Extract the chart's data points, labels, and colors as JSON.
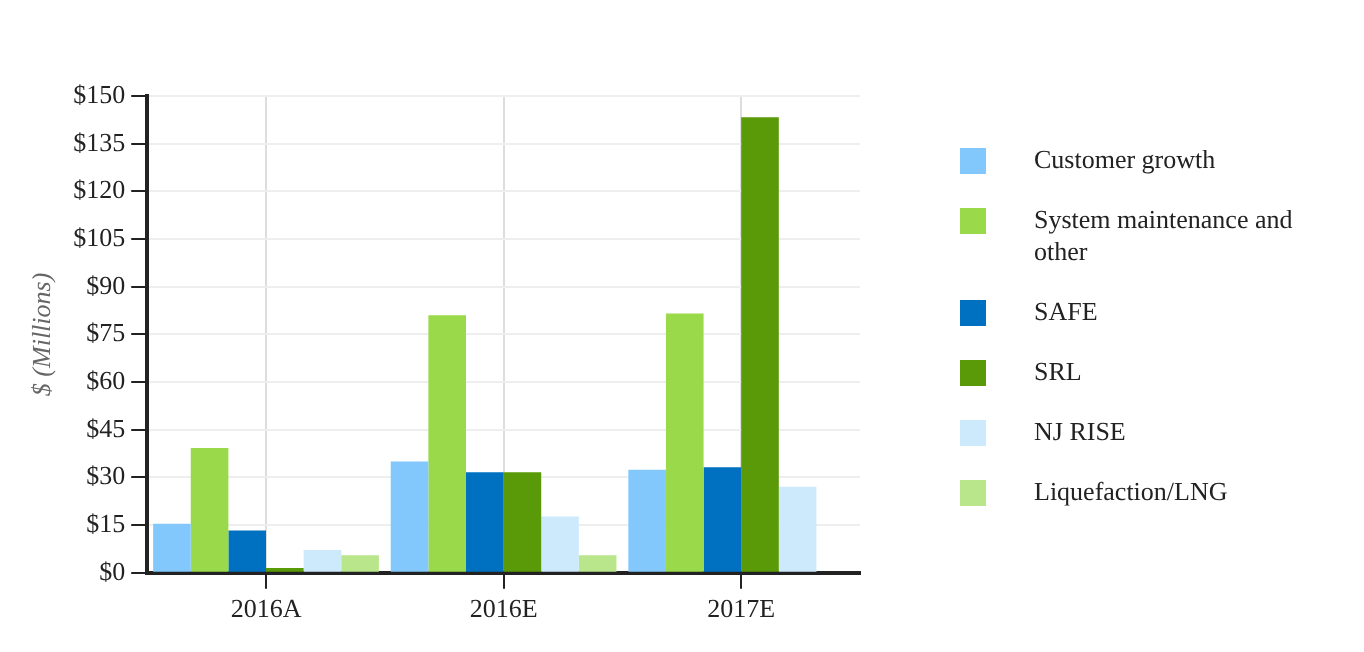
{
  "chart_data": {
    "type": "bar",
    "ylabel": "$ (Millions)",
    "categories": [
      "2016A",
      "2016E",
      "2017E"
    ],
    "series": [
      {
        "name": "Customer growth",
        "color": "#82c8fc",
        "values": [
          15.4,
          35,
          32.4
        ]
      },
      {
        "name": "System maintenance and other",
        "color": "#9ad94a",
        "values": [
          39.3,
          81,
          81.6
        ]
      },
      {
        "name": "SAFE",
        "color": "#0070c0",
        "values": [
          13.3,
          31.6,
          33.2
        ]
      },
      {
        "name": "SRL",
        "color": "#5a9a08",
        "values": [
          1.5,
          31.6,
          143.3
        ]
      },
      {
        "name": "NJ RISE",
        "color": "#cdeafc",
        "values": [
          7.2,
          17.7,
          27.1
        ]
      },
      {
        "name": "Liquefaction/LNG",
        "color": "#b9e68a",
        "values": [
          5.5,
          5.5,
          0
        ]
      }
    ],
    "ylim": [
      0,
      150
    ],
    "yticks": [
      {
        "value": 0,
        "label": "$0"
      },
      {
        "value": 15,
        "label": "$15"
      },
      {
        "value": 30,
        "label": "$30"
      },
      {
        "value": 45,
        "label": "$45"
      },
      {
        "value": 60,
        "label": "$60"
      },
      {
        "value": 75,
        "label": "$75"
      },
      {
        "value": 90,
        "label": "$90"
      },
      {
        "value": 105,
        "label": "$105"
      },
      {
        "value": 120,
        "label": "$120"
      },
      {
        "value": 135,
        "label": "$135"
      },
      {
        "value": 150,
        "label": "$150"
      }
    ],
    "grid": true,
    "legend": "right"
  }
}
